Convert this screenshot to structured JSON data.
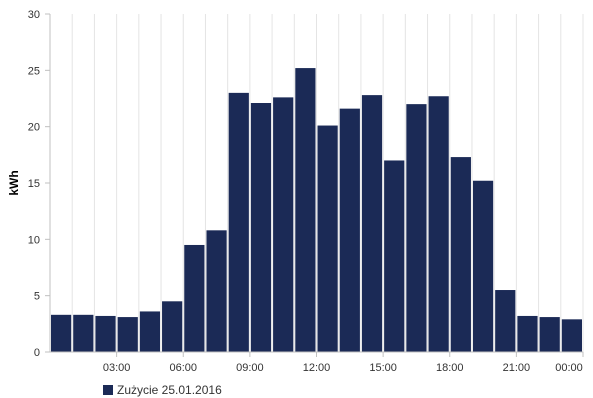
{
  "chart_data": {
    "type": "bar",
    "ylabel": "kWh",
    "ylim": [
      0,
      30
    ],
    "yticks": [
      0,
      5,
      10,
      15,
      20,
      25,
      30
    ],
    "xtick_labels": [
      "03:00",
      "06:00",
      "09:00",
      "12:00",
      "15:00",
      "18:00",
      "21:00",
      "00:00"
    ],
    "xtick_hour_positions": [
      3,
      6,
      9,
      12,
      15,
      18,
      21,
      24
    ],
    "categories": [
      "01:00",
      "02:00",
      "03:00",
      "04:00",
      "05:00",
      "06:00",
      "07:00",
      "08:00",
      "09:00",
      "10:00",
      "11:00",
      "12:00",
      "13:00",
      "14:00",
      "15:00",
      "16:00",
      "17:00",
      "18:00",
      "19:00",
      "20:00",
      "21:00",
      "22:00",
      "23:00",
      "00:00"
    ],
    "series": [
      {
        "name": "Zużycie 25.01.2016",
        "color": "#1b2a56",
        "values": [
          3.3,
          3.3,
          3.2,
          3.1,
          3.6,
          4.5,
          9.5,
          10.8,
          23.0,
          22.1,
          22.6,
          25.2,
          20.1,
          21.6,
          22.8,
          17.0,
          22.0,
          22.7,
          17.3,
          15.2,
          5.5,
          3.2,
          3.1,
          2.9
        ]
      }
    ],
    "grid": "vertical",
    "legend_position": "bottom-left"
  }
}
